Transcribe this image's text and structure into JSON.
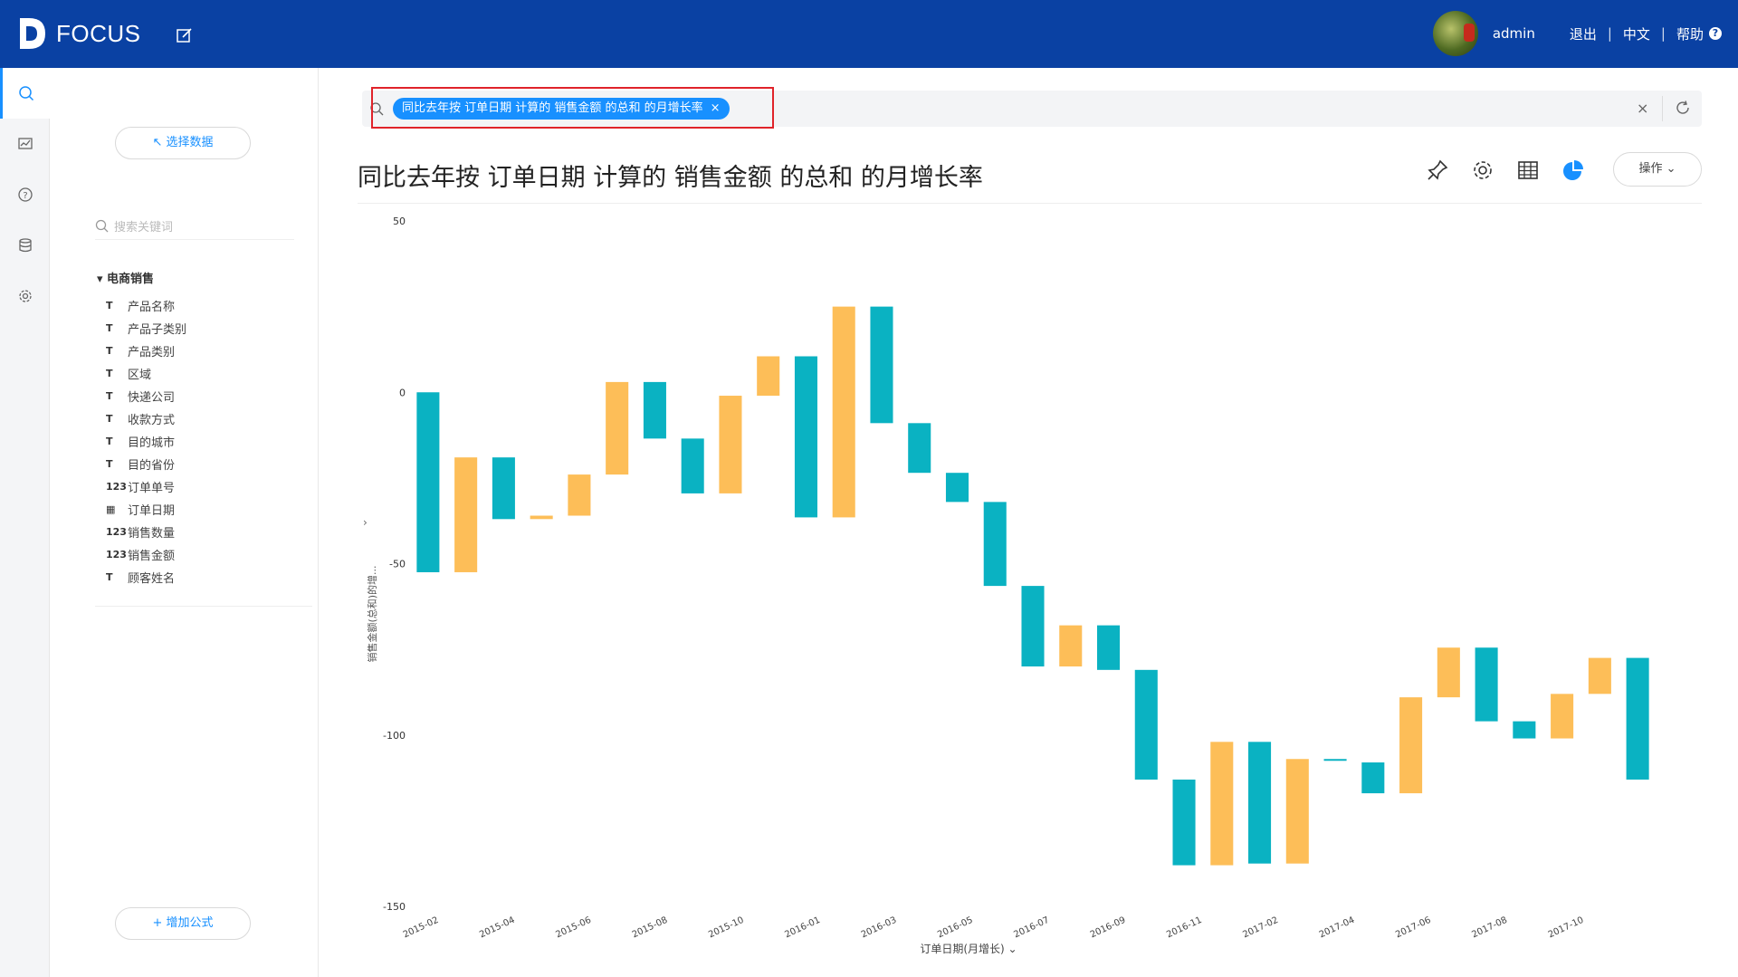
{
  "header": {
    "logo_text": "FOCUS",
    "username": "admin",
    "logout": "退出",
    "language": "中文",
    "help": "帮助",
    "help_icon": "?",
    "separator": "|"
  },
  "colors": {
    "header_bg": "#0a41a3",
    "accent": "#1890ff",
    "teal": "#0ab2c2",
    "orange": "#fdbe58"
  },
  "nav": {
    "items": [
      "search-icon",
      "dashboard-icon",
      "help-icon",
      "database-icon",
      "settings-icon"
    ]
  },
  "datapanel": {
    "select_data": "↖ 选择数据",
    "search_placeholder": "搜索关键词",
    "group_label": "▾  电商销售",
    "fields": [
      {
        "type": "T",
        "label": "产品名称"
      },
      {
        "type": "T",
        "label": "产品子类别"
      },
      {
        "type": "T",
        "label": "产品类别"
      },
      {
        "type": "T",
        "label": "区域"
      },
      {
        "type": "T",
        "label": "快递公司"
      },
      {
        "type": "T",
        "label": "收款方式"
      },
      {
        "type": "T",
        "label": "目的城市"
      },
      {
        "type": "T",
        "label": "目的省份"
      },
      {
        "type": "123",
        "label": "订单单号"
      },
      {
        "type": "▦",
        "label": "订单日期"
      },
      {
        "type": "123",
        "label": "销售数量"
      },
      {
        "type": "123",
        "label": "销售金额"
      },
      {
        "type": "T",
        "label": "顾客姓名"
      }
    ],
    "add_formula": "+ 增加公式"
  },
  "search": {
    "chip_text": "同比去年按  订单日期  计算的  销售金额  的总和  的月增长率",
    "chip_close": "×",
    "clear": "×"
  },
  "page": {
    "title": "同比去年按 订单日期 计算的 销售金额 的总和 的月增长率",
    "ops_label": "操作 ⌄",
    "y_collapse": "›"
  },
  "chart_data": {
    "type": "waterfall",
    "title": "",
    "ylabel": "销售金额(总和)的增...",
    "xlabel": "订单日期(月增长) ⌄",
    "ylim": [
      -150,
      50
    ],
    "yticks": [
      50,
      0,
      -50,
      -100,
      -150
    ],
    "xtick_labels": [
      "2015-02",
      "2015-04",
      "2015-06",
      "2015-08",
      "2015-10",
      "2016-01",
      "2016-03",
      "2016-05",
      "2016-07",
      "2016-09",
      "2016-11",
      "2017-02",
      "2017-04",
      "2017-06",
      "2017-08",
      "2017-10"
    ],
    "bars": [
      {
        "start": 0,
        "end": -52.5,
        "color": "teal"
      },
      {
        "start": -52.5,
        "end": -19,
        "color": "orange"
      },
      {
        "start": -19,
        "end": -37,
        "color": "teal"
      },
      {
        "start": -37,
        "end": -36,
        "color": "orange"
      },
      {
        "start": -36,
        "end": -24,
        "color": "orange"
      },
      {
        "start": -24,
        "end": 3,
        "color": "orange"
      },
      {
        "start": 3,
        "end": -13.5,
        "color": "teal"
      },
      {
        "start": -13.5,
        "end": -29.5,
        "color": "teal"
      },
      {
        "start": -29.5,
        "end": -1,
        "color": "orange"
      },
      {
        "start": -1,
        "end": 10.5,
        "color": "orange"
      },
      {
        "start": 10.5,
        "end": -36.5,
        "color": "teal"
      },
      {
        "start": -36.5,
        "end": 25,
        "color": "orange"
      },
      {
        "start": 25,
        "end": -9,
        "color": "teal"
      },
      {
        "start": -9,
        "end": -23.5,
        "color": "teal"
      },
      {
        "start": -23.5,
        "end": -32,
        "color": "teal"
      },
      {
        "start": -32,
        "end": -56.5,
        "color": "teal"
      },
      {
        "start": -56.5,
        "end": -80,
        "color": "teal"
      },
      {
        "start": -80,
        "end": -68,
        "color": "orange"
      },
      {
        "start": -68,
        "end": -81,
        "color": "teal"
      },
      {
        "start": -81,
        "end": -113,
        "color": "teal"
      },
      {
        "start": -113,
        "end": -138,
        "color": "teal"
      },
      {
        "start": -138,
        "end": -102,
        "color": "orange"
      },
      {
        "start": -102,
        "end": -137.5,
        "color": "teal"
      },
      {
        "start": -137.5,
        "end": -107,
        "color": "orange"
      },
      {
        "start": -107,
        "end": -107.5,
        "color": "teal"
      },
      {
        "start": -108,
        "end": -117,
        "color": "teal"
      },
      {
        "start": -117,
        "end": -89,
        "color": "orange"
      },
      {
        "start": -89,
        "end": -74.5,
        "color": "orange"
      },
      {
        "start": -74.5,
        "end": -96,
        "color": "teal"
      },
      {
        "start": -96,
        "end": -101,
        "color": "teal"
      },
      {
        "start": -101,
        "end": -88,
        "color": "orange"
      },
      {
        "start": -88,
        "end": -77.5,
        "color": "orange"
      },
      {
        "start": -77.5,
        "end": -113,
        "color": "teal"
      }
    ]
  }
}
